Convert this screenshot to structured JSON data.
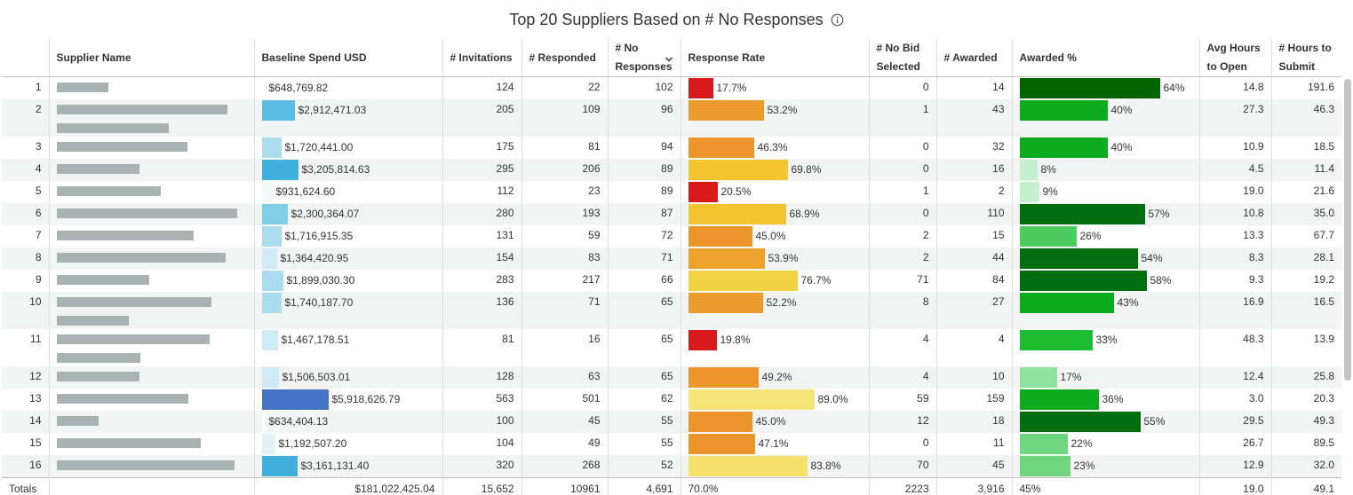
{
  "title": "Top 20 Suppliers Based on # No Responses",
  "columns": [
    {
      "key": "idx",
      "label": ""
    },
    {
      "key": "supplier",
      "label": "Supplier Name"
    },
    {
      "key": "spend",
      "label": "Baseline Spend USD"
    },
    {
      "key": "invitations",
      "label": "# Invitations"
    },
    {
      "key": "responded",
      "label": "# Responded"
    },
    {
      "key": "no_responses",
      "label": "# No Responses"
    },
    {
      "key": "response_rate",
      "label": "Response Rate"
    },
    {
      "key": "no_bid",
      "label": "# No Bid Selected"
    },
    {
      "key": "awarded",
      "label": "# Awarded"
    },
    {
      "key": "awarded_pct",
      "label": "Awarded %"
    },
    {
      "key": "avg_hours",
      "label": "Avg Hours to Open"
    },
    {
      "key": "hours_submit",
      "label": "# Hours to Submit"
    }
  ],
  "rows": [
    {
      "idx": "1",
      "supplier_redacted": [
        58
      ],
      "spend": "$648,769.82",
      "spend_fraction": 0.0,
      "spend_color": "#ffffff",
      "invitations": "124",
      "responded": "22",
      "no_responses": "102",
      "response_rate": "17.7%",
      "rr_fraction": 0.177,
      "rr_color": "#d7191c",
      "no_bid": "0",
      "awarded": "14",
      "awarded_pct": "64%",
      "ap_fraction": 0.64,
      "ap_color": "#006400",
      "avg_hours": "14.8",
      "hours_submit": "191.6"
    },
    {
      "idx": "2",
      "supplier_redacted": [
        192,
        126
      ],
      "spend": "$2,912,471.03",
      "spend_fraction": 0.49,
      "spend_color": "#5bbde4",
      "invitations": "205",
      "responded": "109",
      "no_responses": "96",
      "response_rate": "53.2%",
      "rr_fraction": 0.532,
      "rr_color": "#eb9a2c",
      "no_bid": "1",
      "awarded": "43",
      "awarded_pct": "40%",
      "ap_fraction": 0.4,
      "ap_color": "#0aab1d",
      "avg_hours": "27.3",
      "hours_submit": "46.3"
    },
    {
      "idx": "3",
      "supplier_redacted": [
        147
      ],
      "spend": "$1,720,441.00",
      "spend_fraction": 0.29,
      "spend_color": "#a8dcee",
      "invitations": "175",
      "responded": "81",
      "no_responses": "94",
      "response_rate": "46.3%",
      "rr_fraction": 0.463,
      "rr_color": "#eb952c",
      "no_bid": "0",
      "awarded": "32",
      "awarded_pct": "40%",
      "ap_fraction": 0.4,
      "ap_color": "#0aab1d",
      "avg_hours": "10.9",
      "hours_submit": "18.5"
    },
    {
      "idx": "4",
      "supplier_redacted": [
        93
      ],
      "spend": "$3,205,814.63",
      "spend_fraction": 0.54,
      "spend_color": "#40b0dc",
      "invitations": "295",
      "responded": "206",
      "no_responses": "89",
      "response_rate": "69.8%",
      "rr_fraction": 0.698,
      "rr_color": "#f1c430",
      "no_bid": "0",
      "awarded": "16",
      "awarded_pct": "8%",
      "ap_fraction": 0.08,
      "ap_color": "#c6efd0",
      "avg_hours": "4.5",
      "hours_submit": "11.4"
    },
    {
      "idx": "5",
      "supplier_redacted": [
        117
      ],
      "spend": "$931,624.60",
      "spend_fraction": 0.16,
      "spend_color": "#f0f9fc",
      "invitations": "112",
      "responded": "23",
      "no_responses": "89",
      "response_rate": "20.5%",
      "rr_fraction": 0.205,
      "rr_color": "#d7191c",
      "no_bid": "1",
      "awarded": "2",
      "awarded_pct": "9%",
      "ap_fraction": 0.09,
      "ap_color": "#c6efd0",
      "avg_hours": "19.0",
      "hours_submit": "21.6"
    },
    {
      "idx": "6",
      "supplier_redacted": [
        203
      ],
      "spend": "$2,300,364.07",
      "spend_fraction": 0.39,
      "spend_color": "#80cde8",
      "invitations": "280",
      "responded": "193",
      "no_responses": "87",
      "response_rate": "68.9%",
      "rr_fraction": 0.689,
      "rr_color": "#f1c430",
      "no_bid": "0",
      "awarded": "110",
      "awarded_pct": "57%",
      "ap_fraction": 0.57,
      "ap_color": "#006e0e",
      "avg_hours": "10.8",
      "hours_submit": "35.0"
    },
    {
      "idx": "7",
      "supplier_redacted": [
        154
      ],
      "spend": "$1,716,915.35",
      "spend_fraction": 0.29,
      "spend_color": "#a8dcee",
      "invitations": "131",
      "responded": "59",
      "no_responses": "72",
      "response_rate": "45.0%",
      "rr_fraction": 0.45,
      "rr_color": "#eb952c",
      "no_bid": "2",
      "awarded": "15",
      "awarded_pct": "26%",
      "ap_fraction": 0.26,
      "ap_color": "#4ccc5e",
      "avg_hours": "13.3",
      "hours_submit": "67.7"
    },
    {
      "idx": "8",
      "supplier_redacted": [
        190
      ],
      "spend": "$1,364,420.95",
      "spend_fraction": 0.23,
      "spend_color": "#cdeaf5",
      "invitations": "154",
      "responded": "83",
      "no_responses": "71",
      "response_rate": "53.9%",
      "rr_fraction": 0.539,
      "rr_color": "#eda22e",
      "no_bid": "2",
      "awarded": "44",
      "awarded_pct": "54%",
      "ap_fraction": 0.54,
      "ap_color": "#006e0e",
      "avg_hours": "8.3",
      "hours_submit": "28.1"
    },
    {
      "idx": "9",
      "supplier_redacted": [
        104
      ],
      "spend": "$1,899,030.30",
      "spend_fraction": 0.32,
      "spend_color": "#a8dcee",
      "invitations": "283",
      "responded": "217",
      "no_responses": "66",
      "response_rate": "76.7%",
      "rr_fraction": 0.767,
      "rr_color": "#f3d344",
      "no_bid": "71",
      "awarded": "84",
      "awarded_pct": "58%",
      "ap_fraction": 0.58,
      "ap_color": "#006e0e",
      "avg_hours": "9.3",
      "hours_submit": "19.2"
    },
    {
      "idx": "10",
      "supplier_redacted": [
        174,
        81
      ],
      "spend": "$1,740,187.70",
      "spend_fraction": 0.29,
      "spend_color": "#a8dcee",
      "invitations": "136",
      "responded": "71",
      "no_responses": "65",
      "response_rate": "52.2%",
      "rr_fraction": 0.522,
      "rr_color": "#eb9a2c",
      "no_bid": "8",
      "awarded": "27",
      "awarded_pct": "43%",
      "ap_fraction": 0.43,
      "ap_color": "#0aab1d",
      "avg_hours": "16.9",
      "hours_submit": "16.5"
    },
    {
      "idx": "11",
      "supplier_redacted": [
        172,
        94
      ],
      "spend": "$1,467,178.51",
      "spend_fraction": 0.24,
      "spend_color": "#cdeaf5",
      "invitations": "81",
      "responded": "16",
      "no_responses": "65",
      "response_rate": "19.8%",
      "rr_fraction": 0.198,
      "rr_color": "#d7191c",
      "no_bid": "4",
      "awarded": "4",
      "awarded_pct": "33%",
      "ap_fraction": 0.33,
      "ap_color": "#1bbd31",
      "avg_hours": "48.3",
      "hours_submit": "13.9"
    },
    {
      "idx": "12",
      "supplier_redacted": [
        93
      ],
      "spend": "$1,506,503.01",
      "spend_fraction": 0.25,
      "spend_color": "#cdeaf5",
      "invitations": "128",
      "responded": "63",
      "no_responses": "65",
      "response_rate": "49.2%",
      "rr_fraction": 0.492,
      "rr_color": "#eb952c",
      "no_bid": "4",
      "awarded": "10",
      "awarded_pct": "17%",
      "ap_fraction": 0.17,
      "ap_color": "#8ee09d",
      "avg_hours": "12.4",
      "hours_submit": "25.8"
    },
    {
      "idx": "13",
      "supplier_redacted": [
        148
      ],
      "spend": "$5,918,626.79",
      "spend_fraction": 1.0,
      "spend_color": "#4472c4",
      "invitations": "563",
      "responded": "501",
      "no_responses": "62",
      "response_rate": "89.0%",
      "rr_fraction": 0.89,
      "rr_color": "#f6e67a",
      "no_bid": "59",
      "awarded": "159",
      "awarded_pct": "36%",
      "ap_fraction": 0.36,
      "ap_color": "#0aab1d",
      "avg_hours": "3.0",
      "hours_submit": "20.3"
    },
    {
      "idx": "14",
      "supplier_redacted": [
        47
      ],
      "spend": "$634,404.13",
      "spend_fraction": 0.0,
      "spend_color": "#ffffff",
      "invitations": "100",
      "responded": "45",
      "no_responses": "55",
      "response_rate": "45.0%",
      "rr_fraction": 0.45,
      "rr_color": "#eb952c",
      "no_bid": "12",
      "awarded": "18",
      "awarded_pct": "55%",
      "ap_fraction": 0.55,
      "ap_color": "#006e0e",
      "avg_hours": "29.5",
      "hours_submit": "49.3"
    },
    {
      "idx": "15",
      "supplier_redacted": [
        162
      ],
      "spend": "$1,192,507.20",
      "spend_fraction": 0.2,
      "spend_color": "#e0f2f8",
      "invitations": "104",
      "responded": "49",
      "no_responses": "55",
      "response_rate": "47.1%",
      "rr_fraction": 0.471,
      "rr_color": "#eb952c",
      "no_bid": "0",
      "awarded": "11",
      "awarded_pct": "22%",
      "ap_fraction": 0.22,
      "ap_color": "#6fd67f",
      "avg_hours": "26.7",
      "hours_submit": "89.5"
    },
    {
      "idx": "16",
      "supplier_redacted": [
        200
      ],
      "spend": "$3,161,131.40",
      "spend_fraction": 0.53,
      "spend_color": "#40b0dc",
      "invitations": "320",
      "responded": "268",
      "no_responses": "52",
      "response_rate": "83.8%",
      "rr_fraction": 0.838,
      "rr_color": "#f6e06c",
      "no_bid": "70",
      "awarded": "45",
      "awarded_pct": "23%",
      "ap_fraction": 0.23,
      "ap_color": "#6fd67f",
      "avg_hours": "12.9",
      "hours_submit": "32.0"
    }
  ],
  "totals": {
    "label": "Totals",
    "spend": "$181,022,425.04",
    "invitations": "15,652",
    "responded": "10961",
    "no_responses": "4,691",
    "response_rate": "70.0%",
    "no_bid": "2223",
    "awarded": "3,916",
    "awarded_pct": "45%",
    "avg_hours": "19.0",
    "hours_submit": "49.1"
  },
  "icons": {
    "info": "info-circle-icon",
    "sort": "chevron-down-icon"
  }
}
